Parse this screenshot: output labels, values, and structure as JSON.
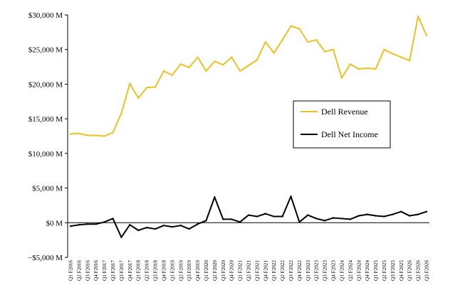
{
  "chart_data": {
    "type": "line",
    "title": "",
    "xlabel": "",
    "ylabel": "",
    "ylim": [
      -5000,
      30000
    ],
    "yticks": [
      -5000,
      0,
      5000,
      10000,
      15000,
      20000,
      25000,
      30000
    ],
    "ytick_labels": [
      "−$5,000 M",
      "$0 M",
      "$5,000 M",
      "$10,000 M",
      "$15,000 M",
      "$20,000 M",
      "$25,000 M",
      "$30,000 M"
    ],
    "grid": false,
    "legend_position": "center-right",
    "categories": [
      "Q1 F2016",
      "Q2 F2016",
      "Q3 F2016",
      "Q4 F2016",
      "Q1 F2017",
      "Q2 F2017",
      "Q3 F2017",
      "Q4 F2017",
      "Q1 F2018",
      "Q2 F2018",
      "Q3 F2018",
      "Q4 F2018",
      "Q1 F2019",
      "Q2 F2019",
      "Q3 F2019",
      "Q4 F2019",
      "Q1 F2020",
      "Q2 F2020",
      "Q3 F2020",
      "Q4 F2020",
      "Q1 F2021",
      "Q2 F2021",
      "Q3 F2021",
      "Q4 F2021",
      "Q1 F2022",
      "Q2 F2022",
      "Q3 F2022",
      "Q4 F2022",
      "Q1 F2023",
      "Q2 F2023",
      "Q3 F2023",
      "Q4 F2023",
      "Q1 F2024",
      "Q2 F2024",
      "Q3 F2024",
      "Q4 F2024",
      "Q1 F2025",
      "Q2 F2025",
      "Q3 F2025",
      "Q4 F2025",
      "Q1 F2026",
      "Q2 F2026",
      "Q3 F2026"
    ],
    "series": [
      {
        "name": "Dell Revenue",
        "color": "#E8C227",
        "values": [
          12800,
          12900,
          12600,
          12600,
          12500,
          13000,
          15800,
          20100,
          18000,
          19500,
          19600,
          21900,
          21300,
          22900,
          22400,
          23900,
          21900,
          23300,
          22800,
          23900,
          21900,
          22700,
          23500,
          26100,
          24500,
          26400,
          28400,
          28000,
          26100,
          26400,
          24700,
          25000,
          20900,
          22900,
          22200,
          22300,
          22200,
          25000,
          24400,
          23900,
          23400,
          29800,
          27000
        ]
      },
      {
        "name": "Dell Net Income",
        "color": "#000000",
        "values": [
          -500,
          -300,
          -200,
          -200,
          100,
          600,
          -2100,
          -300,
          -1100,
          -700,
          -900,
          -400,
          -600,
          -400,
          -900,
          -200,
          300,
          3700,
          500,
          500,
          100,
          1100,
          900,
          1300,
          900,
          900,
          3800,
          100,
          1100,
          600,
          300,
          700,
          600,
          500,
          1000,
          1200,
          1000,
          900,
          1200,
          1600,
          1000,
          1200,
          1600
        ]
      }
    ]
  }
}
